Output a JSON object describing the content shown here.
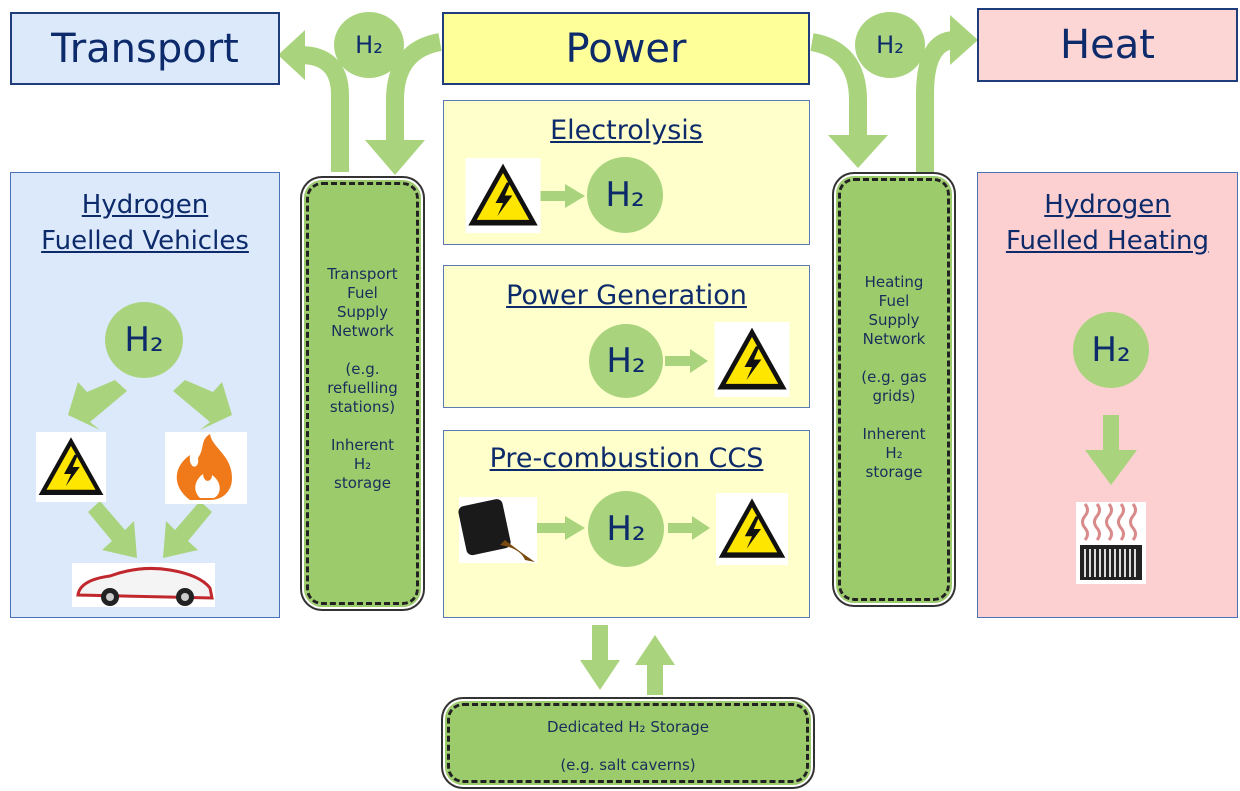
{
  "header": {
    "transport": "Transport",
    "power": "Power",
    "heat": "Heat",
    "left_h2": "H₂",
    "right_h2": "H₂"
  },
  "transport_panel": {
    "title_lines": [
      "Hydrogen",
      "Fuelled Vehicles"
    ],
    "h2": "H₂"
  },
  "transport_network": {
    "name_lines": [
      "Transport",
      "Fuel",
      "Supply",
      "Network"
    ],
    "example_lines": [
      "(e.g.",
      "refuelling",
      "stations)"
    ],
    "storage_lines": [
      "Inherent",
      "H₂",
      "storage"
    ]
  },
  "electrolysis": {
    "title": "Electrolysis",
    "h2": "H₂"
  },
  "power_generation": {
    "title": "Power Generation",
    "h2": "H₂"
  },
  "pre_combustion": {
    "title": "Pre-combustion CCS",
    "h2": "H₂"
  },
  "heating_network": {
    "name_lines": [
      "Heating",
      "Fuel",
      "Supply",
      "Network"
    ],
    "example_lines": [
      "(e.g. gas",
      "grids)"
    ],
    "storage_lines": [
      "Inherent",
      "H₂",
      "storage"
    ]
  },
  "heating_panel": {
    "title_lines": [
      "Hydrogen",
      "Fuelled Heating"
    ],
    "h2": "H₂"
  },
  "storage": {
    "title": "Dedicated H₂ Storage",
    "example": "(e.g. salt caverns)"
  }
}
